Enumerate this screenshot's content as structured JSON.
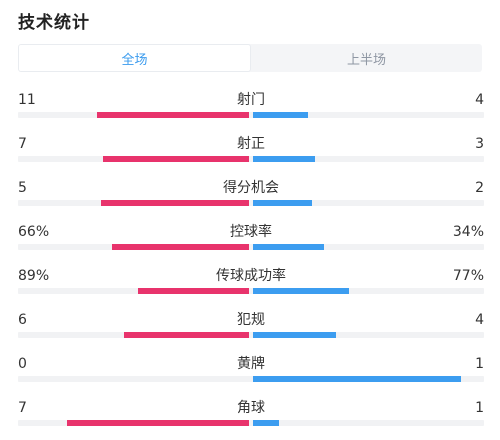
{
  "header": {
    "title": "技术统计"
  },
  "tabs": [
    {
      "label": "全场",
      "active": true
    },
    {
      "label": "上半场",
      "active": false
    }
  ],
  "colors": {
    "home": "#e8336c",
    "away": "#3c9df0",
    "active_tab": "#3a9bee"
  },
  "stats": [
    {
      "label": "射门",
      "home": "11",
      "away": "4",
      "home_value": 11,
      "away_value": 4
    },
    {
      "label": "射正",
      "home": "7",
      "away": "3",
      "home_value": 7,
      "away_value": 3
    },
    {
      "label": "得分机会",
      "home": "5",
      "away": "2",
      "home_value": 5,
      "away_value": 2
    },
    {
      "label": "控球率",
      "home": "66%",
      "away": "34%",
      "home_value": 66,
      "away_value": 34
    },
    {
      "label": "传球成功率",
      "home": "89%",
      "away": "77%",
      "home_value": 89,
      "away_value": 77
    },
    {
      "label": "犯规",
      "home": "6",
      "away": "4",
      "home_value": 6,
      "away_value": 4
    },
    {
      "label": "黄牌",
      "home": "0",
      "away": "1",
      "home_value": 0,
      "away_value": 1
    },
    {
      "label": "角球",
      "home": "7",
      "away": "1",
      "home_value": 7,
      "away_value": 1
    }
  ]
}
